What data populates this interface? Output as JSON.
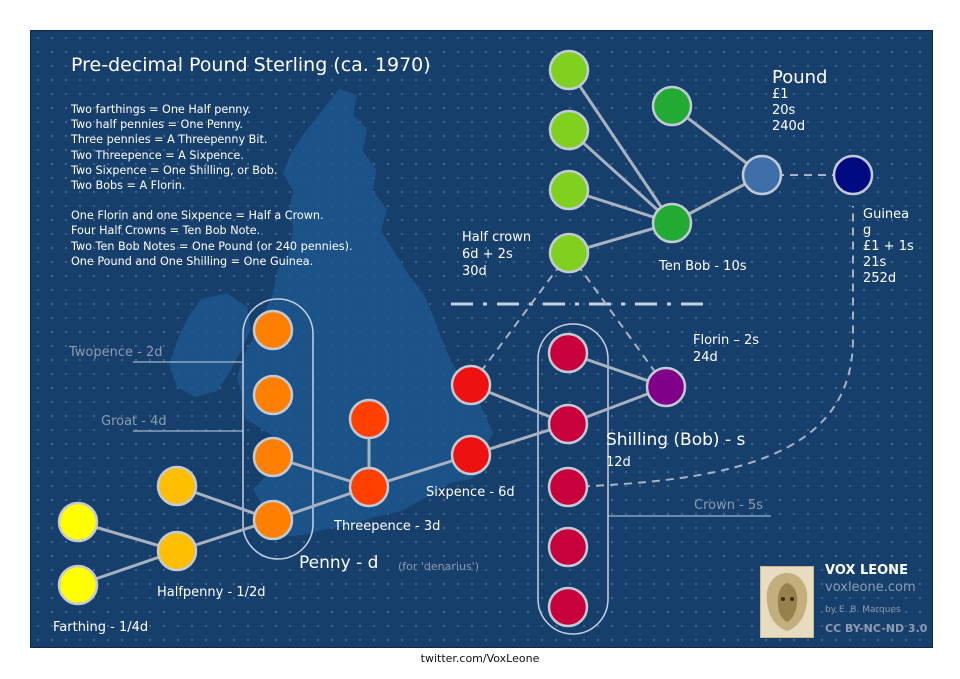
{
  "title": "Pre-decimal Pound Sterling (ca. 1970)",
  "notes": [
    "Two farthings = One Half penny.",
    "Two half pennies = One Penny.",
    "Three pennies = A Threepenny Bit.",
    "Two Threepence = A Sixpence.",
    "Two Sixpence = One Shilling, or Bob.",
    "Two Bobs = A Florin.",
    "",
    "One Florin and one Sixpence = Half a Crown.",
    "Four Half Crowns = Ten Bob Note.",
    "Two Ten Bob Notes = One Pound (or 240 pennies).",
    "One Pound and One Shilling = One Guinea."
  ],
  "labels": {
    "pound_title": "Pound",
    "pound_values": [
      "£1",
      "20s",
      "240d"
    ],
    "guinea_values": [
      "Guinea",
      "g",
      "£1 + 1s",
      "21s",
      "252d"
    ],
    "ten_bob": "Ten Bob - 10s",
    "half_crown": [
      "Half crown",
      "6d + 2s",
      "30d"
    ],
    "florin": [
      "Florin – 2s",
      "24d"
    ],
    "shilling_title": "Shilling (Bob) - s",
    "shilling_value": "12d",
    "crown": "Crown - 5s",
    "sixpence": "Sixpence - 6d",
    "threepence": "Threepence - 3d",
    "penny_title": "Penny - d",
    "penny_note": "(for 'denarius')",
    "twopence": "Twopence - 2d",
    "groat": "Groat - 4d",
    "halfpenny": "Halfpenny - 1/2d",
    "farthing": "Farthing - 1/4d"
  },
  "brand": {
    "name": "VOX LEONE",
    "site": "voxleone.com",
    "by": "by E. B. Marques",
    "license": "CC BY-NC-ND 3.0"
  },
  "footer": "twitter.com/VoxLeone",
  "colors": {
    "background": "#173f6b",
    "farthing": "#ffff00",
    "halfpenny": "#ffbf00",
    "penny": "#ff8000",
    "threepence": "#ff4000",
    "sixpence": "#ee1111",
    "shilling": "#c8003c",
    "florin": "#80008a",
    "half_crown": "#80d020",
    "ten_bob": "#22aa33",
    "pound": "#3f6fa8",
    "guinea": "#000a80"
  }
}
